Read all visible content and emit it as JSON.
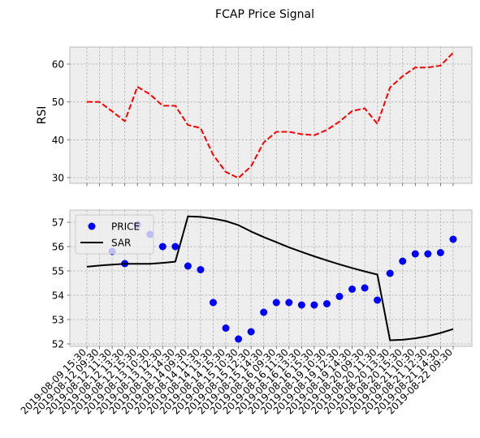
{
  "chart_data": {
    "title": "FCAP Price Signal",
    "x_ticks": [
      "2019-08-09 15:30",
      "2019-08-12 09:30",
      "2019-08-12 11:30",
      "2019-08-12 13:30",
      "2019-08-12 15:30",
      "2019-08-13 10:30",
      "2019-08-13 12:30",
      "2019-08-13 14:30",
      "2019-08-14 09:30",
      "2019-08-14 11:30",
      "2019-08-14 13:30",
      "2019-08-14 15:30",
      "2019-08-15 10:30",
      "2019-08-15 12:30",
      "2019-08-15 14:30",
      "2019-08-16 09:30",
      "2019-08-16 11:30",
      "2019-08-16 13:30",
      "2019-08-16 15:30",
      "2019-08-19 10:30",
      "2019-08-19 12:30",
      "2019-08-19 14:30",
      "2019-08-20 09:30",
      "2019-08-20 11:30",
      "2019-08-20 13:30",
      "2019-08-20 15:30",
      "2019-08-21 10:30",
      "2019-08-21 12:30",
      "2019-08-21 14:30",
      "2019-08-22 09:30"
    ],
    "charts": [
      {
        "type": "line",
        "ylabel": "RSI",
        "ylim": [
          28.5,
          64.5
        ],
        "yticks": [
          30,
          40,
          50,
          60
        ],
        "grid": true,
        "series": [
          {
            "color": "#ff0000",
            "dash": "dashed",
            "values": [
              50,
              50,
              47.5,
              44.9,
              54,
              52,
              49,
              49,
              43.9,
              43.1,
              36,
              31.5,
              29.9,
              33,
              39.3,
              42.1,
              42.1,
              41.5,
              41.2,
              42.6,
              44.8,
              47.6,
              48.3,
              44.2,
              53.8,
              56.8,
              59.1,
              59.1,
              59.6,
              63
            ]
          }
        ]
      },
      {
        "type": "scatter+line",
        "ylim": [
          51.9,
          57.5
        ],
        "yticks": [
          52,
          53,
          54,
          55,
          56,
          57
        ],
        "grid": true,
        "legend": "top-left",
        "series": [
          {
            "name": "PRICE",
            "kind": "scatter",
            "color": "#0000ff",
            "values": [
              null,
              null,
              55.8,
              55.3,
              56.9,
              56.5,
              56.0,
              56.0,
              55.2,
              55.05,
              53.7,
              52.65,
              52.2,
              52.5,
              53.3,
              53.7,
              53.7,
              53.6,
              53.6,
              53.65,
              53.95,
              54.25,
              54.3,
              53.8,
              54.9,
              55.4,
              55.7,
              55.7,
              55.75,
              56.3
            ]
          },
          {
            "name": "SAR",
            "kind": "line",
            "color": "#000000",
            "values": [
              55.17,
              55.22,
              55.26,
              55.29,
              55.29,
              55.29,
              55.33,
              55.38,
              57.24,
              57.22,
              57.15,
              57.05,
              56.88,
              56.62,
              56.39,
              56.18,
              55.97,
              55.78,
              55.6,
              55.43,
              55.27,
              55.12,
              54.98,
              54.85,
              52.15,
              52.17,
              52.23,
              52.32,
              52.45,
              52.61
            ]
          }
        ]
      }
    ]
  }
}
